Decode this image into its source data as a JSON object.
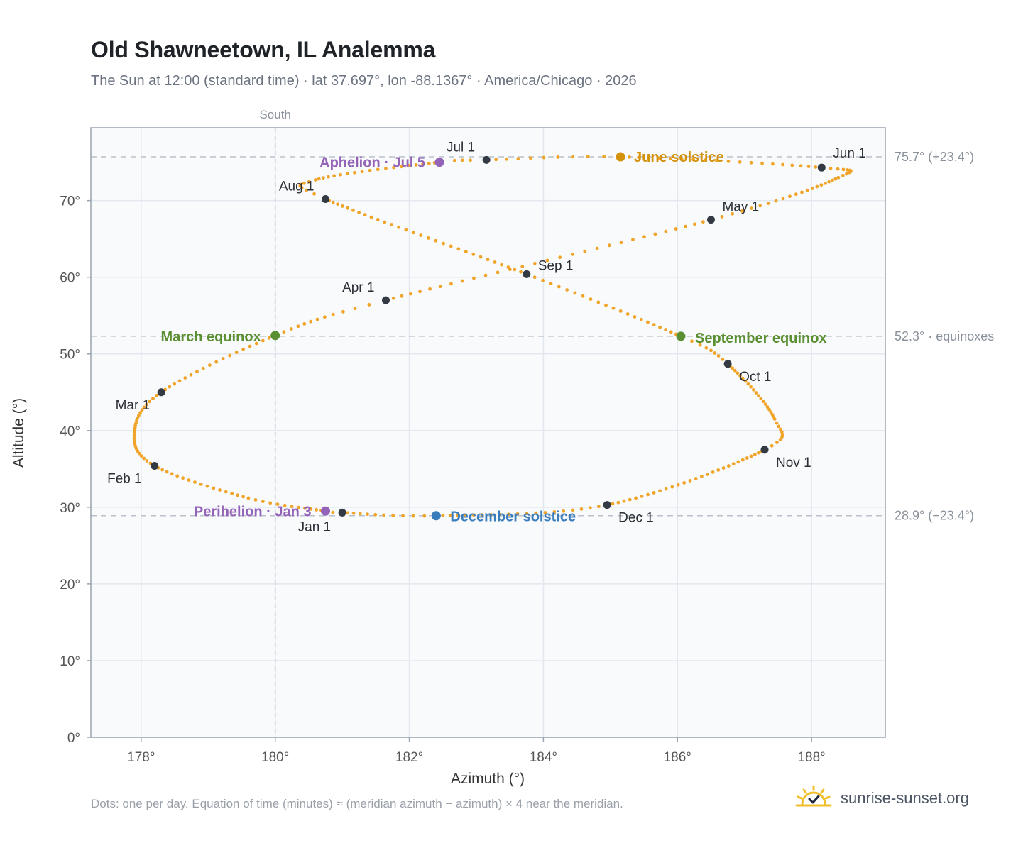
{
  "page": {
    "title": "Old Shawneetown, IL Analemma",
    "subtitle": "The Sun at 12:00 (standard time) · lat 37.697°, lon -88.1367° · America/Chicago · 2026",
    "footnote": "Dots: one per day. Equation of time (minutes) ≈ (meridian azimuth − azimuth) × 4 near the meridian.",
    "brand": "sunrise-sunset.org"
  },
  "colors": {
    "curve": "#f0a52a",
    "month_marker": "#333a44",
    "equinox": "#5a8f32",
    "june_solstice": "#d4920c",
    "december_solstice": "#3a7dbd",
    "apsis": "#9363b8",
    "plot_bg": "#f8fafc",
    "grid": "#e3e8ee",
    "refline": "#b9c2cc",
    "brand_sun": "#f2bf2c"
  },
  "chart_data": {
    "type": "scatter",
    "title": "Old Shawneetown, IL Analemma",
    "xlabel": "Azimuth (°)",
    "ylabel": "Altitude (°)",
    "xlim": [
      177.25,
      189.1
    ],
    "ylim": [
      0,
      79.5
    ],
    "xticks": [
      178,
      180,
      182,
      184,
      186,
      188
    ],
    "xtick_labels": [
      "178°",
      "180°",
      "182°",
      "184°",
      "186°",
      "188°"
    ],
    "yticks": [
      0,
      10,
      20,
      30,
      40,
      50,
      60,
      70
    ],
    "ytick_labels": [
      "0°",
      "10°",
      "20°",
      "30°",
      "40°",
      "50°",
      "60°",
      "70°"
    ],
    "grid": true,
    "meridian": {
      "x": 180,
      "label": "South"
    },
    "reference_lines": [
      {
        "y": 75.7,
        "label": "75.7° (+23.4°)"
      },
      {
        "y": 52.3,
        "label": "52.3° · equinoxes"
      },
      {
        "y": 28.9,
        "label": "28.9° (−23.4°)"
      }
    ],
    "month_markers": [
      {
        "label": "Jan 1",
        "x": 181.0,
        "y": 29.3
      },
      {
        "label": "Feb 1",
        "x": 178.2,
        "y": 35.4
      },
      {
        "label": "Mar 1",
        "x": 178.3,
        "y": 45.0
      },
      {
        "label": "Apr 1",
        "x": 181.65,
        "y": 57.0
      },
      {
        "label": "May 1",
        "x": 186.5,
        "y": 67.5
      },
      {
        "label": "Jun 1",
        "x": 188.15,
        "y": 74.3
      },
      {
        "label": "Jul 1",
        "x": 183.15,
        "y": 75.3
      },
      {
        "label": "Aug 1",
        "x": 180.75,
        "y": 70.2
      },
      {
        "label": "Sep 1",
        "x": 183.75,
        "y": 60.4
      },
      {
        "label": "Oct 1",
        "x": 186.75,
        "y": 48.7
      },
      {
        "label": "Nov 1",
        "x": 187.3,
        "y": 37.5
      },
      {
        "label": "Dec 1",
        "x": 184.95,
        "y": 30.3
      }
    ],
    "events": [
      {
        "label": "March equinox",
        "x": 180.0,
        "y": 52.4,
        "kind": "equinox"
      },
      {
        "label": "September equinox",
        "x": 186.05,
        "y": 52.3,
        "kind": "equinox"
      },
      {
        "label": "June solstice",
        "x": 185.15,
        "y": 75.7,
        "kind": "june_solstice"
      },
      {
        "label": "December solstice",
        "x": 182.4,
        "y": 28.9,
        "kind": "december_solstice"
      },
      {
        "label": "Aphelion · Jul 5",
        "x": 182.45,
        "y": 75.0,
        "kind": "apsis"
      },
      {
        "label": "Perihelion · Jan 3",
        "x": 180.75,
        "y": 29.5,
        "kind": "apsis"
      }
    ],
    "curve_anchors": [
      [
        1,
        181.0,
        29.3
      ],
      [
        3,
        180.75,
        29.5
      ],
      [
        15,
        179.6,
        31.2
      ],
      [
        32,
        178.2,
        35.4
      ],
      [
        45,
        177.9,
        39.7
      ],
      [
        60,
        178.3,
        45.0
      ],
      [
        79,
        180.0,
        52.4
      ],
      [
        91,
        181.65,
        57.0
      ],
      [
        121,
        186.5,
        67.5
      ],
      [
        141,
        188.4,
        73.0
      ],
      [
        152,
        188.15,
        74.3
      ],
      [
        172,
        185.15,
        75.7
      ],
      [
        182,
        183.15,
        75.3
      ],
      [
        186,
        182.45,
        75.0
      ],
      [
        205,
        180.6,
        72.7
      ],
      [
        213,
        180.75,
        70.2
      ],
      [
        244,
        183.75,
        60.4
      ],
      [
        266,
        186.05,
        52.3
      ],
      [
        274,
        186.75,
        48.7
      ],
      [
        295,
        187.45,
        41.5
      ],
      [
        305,
        187.3,
        37.5
      ],
      [
        335,
        184.95,
        30.3
      ],
      [
        355,
        182.4,
        28.9
      ],
      [
        366,
        181.0,
        29.3
      ]
    ]
  }
}
